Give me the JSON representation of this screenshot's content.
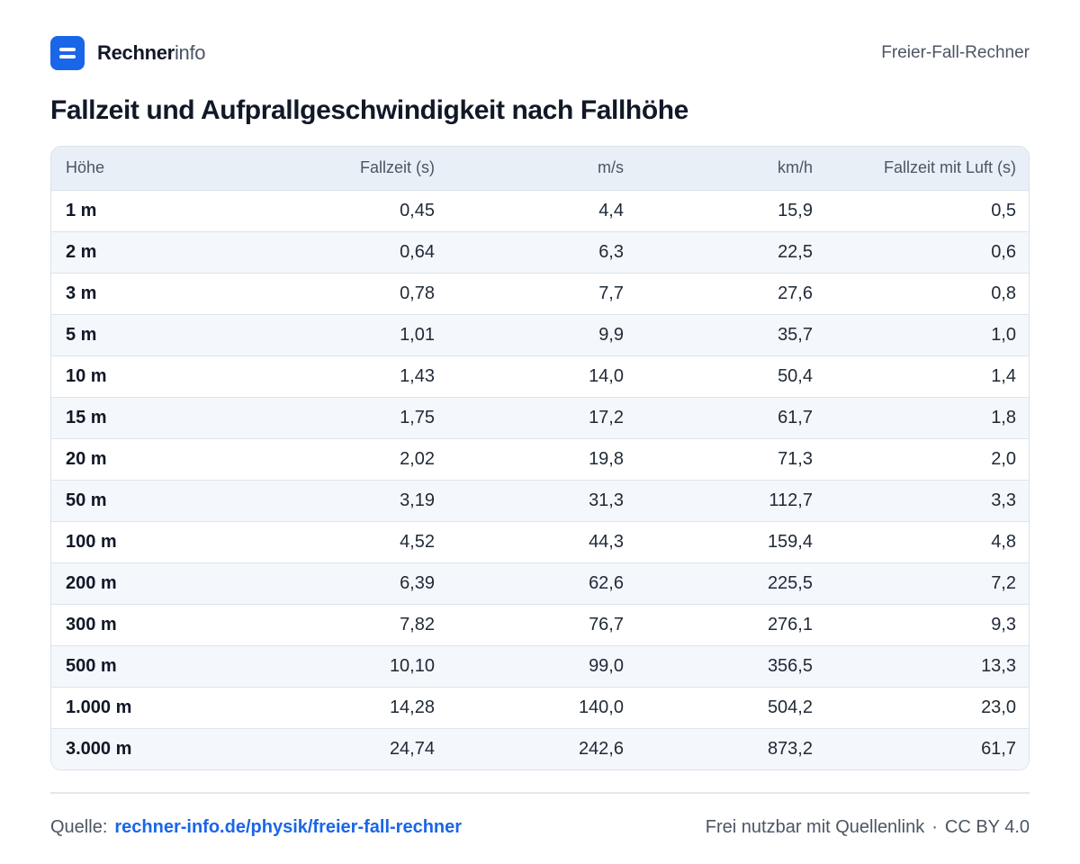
{
  "brand": {
    "name_bold": "Rechner",
    "name_light": "info",
    "accent_color": "#1a66e8",
    "logo_icon": "menu-lines-icon"
  },
  "calculator_name": "Freier-Fall-Rechner",
  "title": "Fallzeit und Aufprallgeschwindigkeit nach Fallhöhe",
  "table": {
    "headers": [
      "Höhe",
      "Fallzeit (s)",
      "m/s",
      "km/h",
      "Fallzeit mit Luft (s)"
    ],
    "rows": [
      [
        "1 m",
        "0,45",
        "4,4",
        "15,9",
        "0,5"
      ],
      [
        "2 m",
        "0,64",
        "6,3",
        "22,5",
        "0,6"
      ],
      [
        "3 m",
        "0,78",
        "7,7",
        "27,6",
        "0,8"
      ],
      [
        "5 m",
        "1,01",
        "9,9",
        "35,7",
        "1,0"
      ],
      [
        "10 m",
        "1,43",
        "14,0",
        "50,4",
        "1,4"
      ],
      [
        "15 m",
        "1,75",
        "17,2",
        "61,7",
        "1,8"
      ],
      [
        "20 m",
        "2,02",
        "19,8",
        "71,3",
        "2,0"
      ],
      [
        "50 m",
        "3,19",
        "31,3",
        "112,7",
        "3,3"
      ],
      [
        "100 m",
        "4,52",
        "44,3",
        "159,4",
        "4,8"
      ],
      [
        "200 m",
        "6,39",
        "62,6",
        "225,5",
        "7,2"
      ],
      [
        "300 m",
        "7,82",
        "76,7",
        "276,1",
        "9,3"
      ],
      [
        "500 m",
        "10,10",
        "99,0",
        "356,5",
        "13,3"
      ],
      [
        "1.000 m",
        "14,28",
        "140,0",
        "504,2",
        "23,0"
      ],
      [
        "3.000 m",
        "24,74",
        "242,6",
        "873,2",
        "61,7"
      ]
    ]
  },
  "footer": {
    "source_label": "Quelle:",
    "source_link": "rechner-info.de/physik/freier-fall-rechner",
    "license_text": "Frei nutzbar mit Quellenlink",
    "separator": "·",
    "license_name": "CC BY 4.0"
  }
}
